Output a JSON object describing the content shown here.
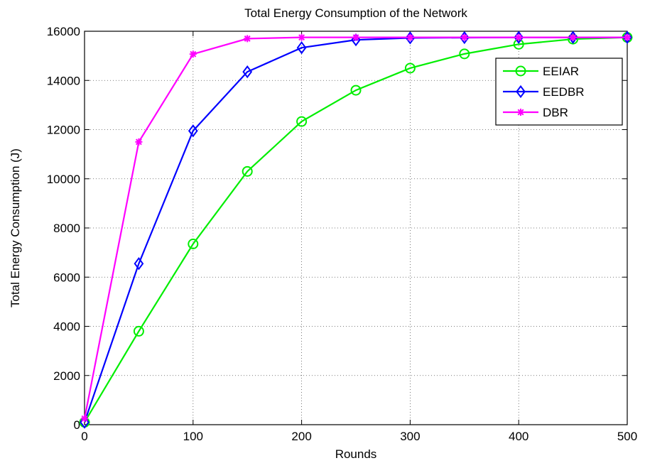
{
  "chart_data": {
    "type": "line",
    "title": "Total Energy Consumption of the Network",
    "xlabel": "Rounds",
    "ylabel": "Total Energy Consumption (J)",
    "xlim": [
      0,
      500
    ],
    "ylim": [
      0,
      16000
    ],
    "x_ticks": [
      "0",
      "100",
      "200",
      "300",
      "400",
      "500"
    ],
    "y_ticks": [
      "0",
      "2000",
      "4000",
      "6000",
      "8000",
      "10000",
      "12000",
      "14000",
      "16000"
    ],
    "grid": true,
    "legend_position": "top-right",
    "x": [
      0,
      50,
      100,
      150,
      200,
      250,
      300,
      350,
      400,
      450,
      500
    ],
    "series": [
      {
        "name": "EEIAR",
        "color": "#00ee00",
        "marker": "circle",
        "values": [
          100,
          3800,
          7350,
          10300,
          12330,
          13600,
          14500,
          15080,
          15470,
          15680,
          15750
        ]
      },
      {
        "name": "EEDBR",
        "color": "#0000ff",
        "marker": "diamond",
        "values": [
          100,
          6550,
          11950,
          14350,
          15330,
          15650,
          15730,
          15740,
          15750,
          15750,
          15750
        ]
      },
      {
        "name": "DBR",
        "color": "#ff00ff",
        "marker": "star",
        "values": [
          250,
          11500,
          15070,
          15700,
          15750,
          15750,
          15750,
          15750,
          15750,
          15750,
          15750
        ]
      }
    ]
  }
}
